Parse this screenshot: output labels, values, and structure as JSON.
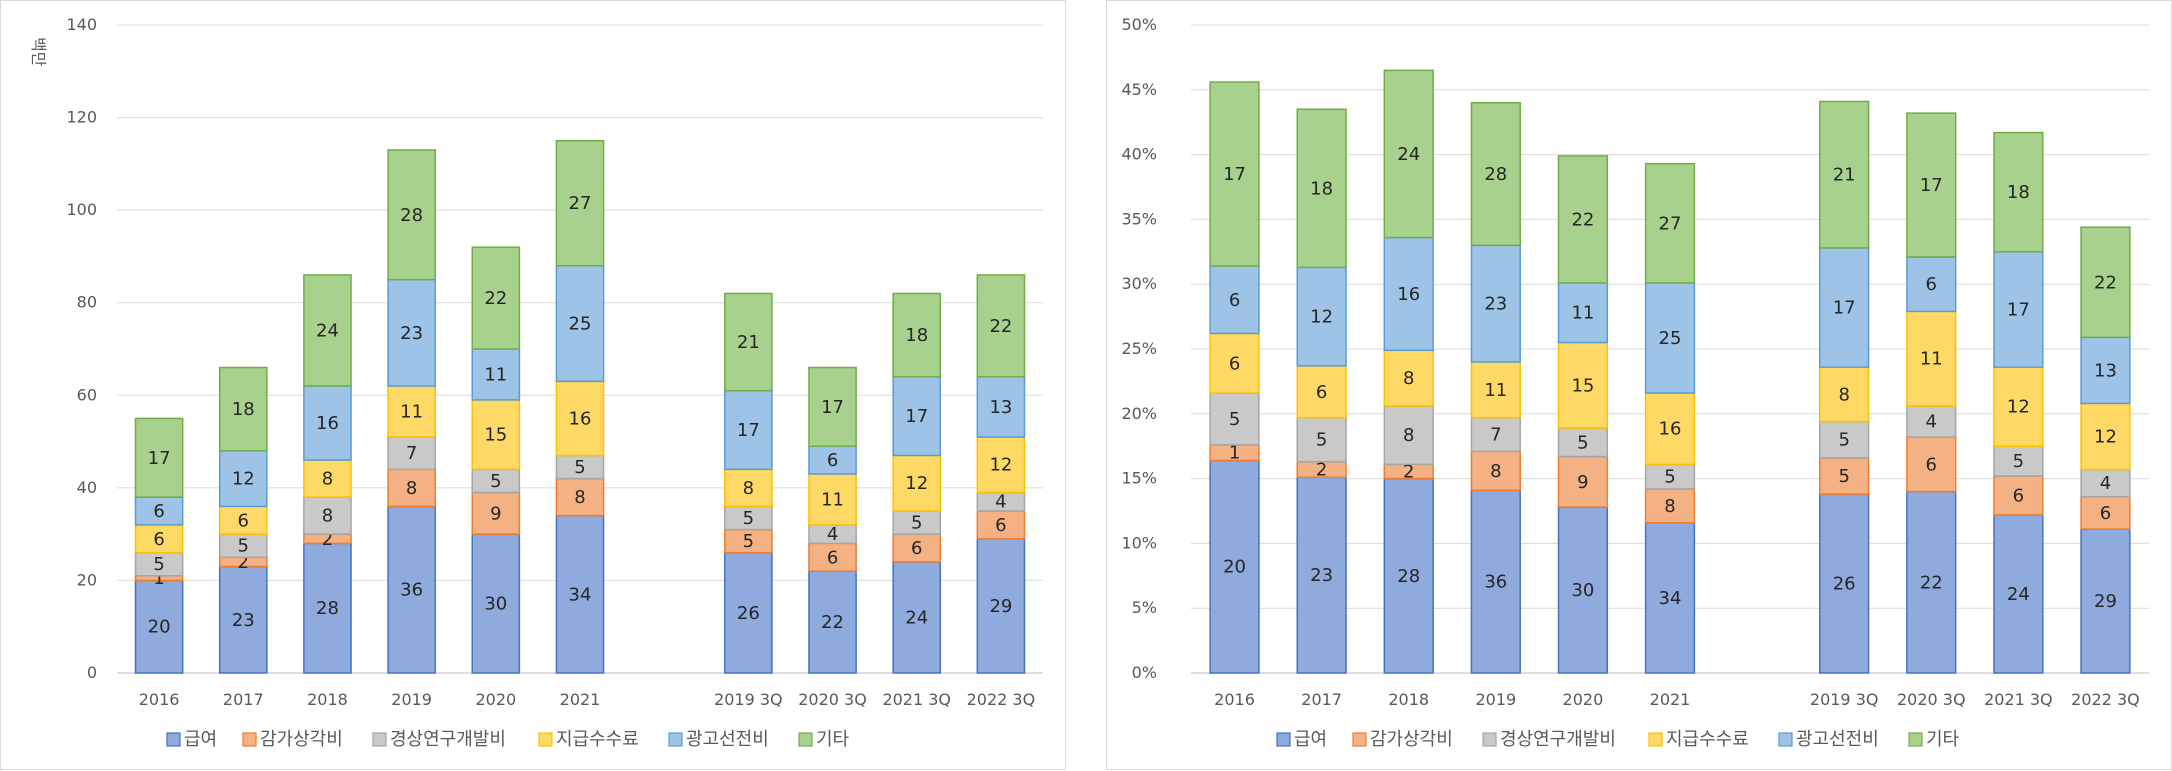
{
  "colors": {
    "급여": {
      "fill": "#8faadc",
      "stroke": "#4472c4"
    },
    "감가상각비": {
      "fill": "#f4b183",
      "stroke": "#ed7d31"
    },
    "경상연구개발비": {
      "fill": "#c9c9c9",
      "stroke": "#a5a5a5"
    },
    "지급수수료": {
      "fill": "#ffd966",
      "stroke": "#ffc000"
    },
    "광고선전비": {
      "fill": "#9dc3e6",
      "stroke": "#5b9bd5"
    },
    "기타": {
      "fill": "#a9d18e",
      "stroke": "#70ad47"
    }
  },
  "chart_data": [
    {
      "type": "bar",
      "stacked": true,
      "ylabel": "백만",
      "ylim": [
        0,
        140
      ],
      "yticks": [
        0,
        20,
        40,
        60,
        80,
        100,
        120,
        140
      ],
      "ytick_labels": [
        "0",
        "20",
        "40",
        "60",
        "80",
        "100",
        "120",
        "140"
      ],
      "grid": true,
      "legend": "bottom",
      "categories": [
        "2016",
        "2017",
        "2018",
        "2019",
        "2020",
        "2021",
        "",
        "2019 3Q",
        "2020 3Q",
        "2021 3Q",
        "2022 3Q"
      ],
      "series": [
        {
          "name": "급여",
          "values": [
            20,
            23,
            28,
            36,
            30,
            34,
            null,
            26,
            22,
            24,
            29
          ],
          "labels": [
            "20",
            "23",
            "28",
            "36",
            "30",
            "34",
            "",
            "26",
            "22",
            "24",
            "29"
          ]
        },
        {
          "name": "감가상각비",
          "values": [
            1,
            2,
            2,
            8,
            9,
            8,
            null,
            5,
            6,
            6,
            6
          ],
          "labels": [
            "1",
            "2",
            "2",
            "8",
            "9",
            "8",
            "",
            "5",
            "6",
            "6",
            "6"
          ]
        },
        {
          "name": "경상연구개발비",
          "values": [
            5,
            5,
            8,
            7,
            5,
            5,
            null,
            5,
            4,
            5,
            4
          ],
          "labels": [
            "5",
            "5",
            "8",
            "7",
            "5",
            "5",
            "",
            "5",
            "4",
            "5",
            "4"
          ]
        },
        {
          "name": "지급수수료",
          "values": [
            6,
            6,
            8,
            11,
            15,
            16,
            null,
            8,
            11,
            12,
            12
          ],
          "labels": [
            "6",
            "6",
            "8",
            "11",
            "15",
            "16",
            "",
            "8",
            "11",
            "12",
            "12"
          ]
        },
        {
          "name": "광고선전비",
          "values": [
            6,
            12,
            16,
            23,
            11,
            25,
            null,
            17,
            6,
            17,
            13
          ],
          "labels": [
            "6",
            "12",
            "16",
            "23",
            "11",
            "25",
            "",
            "17",
            "6",
            "17",
            "13"
          ]
        },
        {
          "name": "기타",
          "values": [
            17,
            18,
            24,
            28,
            22,
            27,
            null,
            21,
            17,
            18,
            22
          ],
          "labels": [
            "17",
            "18",
            "24",
            "28",
            "22",
            "27",
            "",
            "21",
            "17",
            "18",
            "22"
          ]
        }
      ]
    },
    {
      "type": "bar",
      "stacked": true,
      "ylim": [
        0,
        50
      ],
      "yticks": [
        0,
        5,
        10,
        15,
        20,
        25,
        30,
        35,
        40,
        45,
        50
      ],
      "ytick_labels": [
        "0%",
        "5%",
        "10%",
        "15%",
        "20%",
        "25%",
        "30%",
        "35%",
        "40%",
        "45%",
        "50%"
      ],
      "grid": true,
      "legend": "bottom",
      "categories": [
        "2016",
        "2017",
        "2018",
        "2019",
        "2020",
        "2021",
        "",
        "2019 3Q",
        "2020 3Q",
        "2021 3Q",
        "2022 3Q"
      ],
      "series": [
        {
          "name": "급여",
          "values": [
            16.4,
            15.1,
            15.0,
            14.1,
            12.8,
            11.6,
            null,
            13.8,
            14.0,
            12.2,
            11.1
          ],
          "labels": [
            "20",
            "23",
            "28",
            "36",
            "30",
            "34",
            "",
            "26",
            "22",
            "24",
            "29"
          ]
        },
        {
          "name": "감가상각비",
          "values": [
            1.2,
            1.2,
            1.1,
            3.0,
            3.9,
            2.6,
            null,
            2.8,
            4.2,
            3.0,
            2.5
          ],
          "labels": [
            "1",
            "2",
            "2",
            "8",
            "9",
            "8",
            "",
            "5",
            "6",
            "6",
            "6"
          ]
        },
        {
          "name": "경상연구개발비",
          "values": [
            4.0,
            3.4,
            4.5,
            2.6,
            2.2,
            1.9,
            null,
            2.8,
            2.4,
            2.3,
            2.1
          ],
          "labels": [
            "5",
            "5",
            "8",
            "7",
            "5",
            "5",
            "",
            "5",
            "4",
            "5",
            "4"
          ]
        },
        {
          "name": "지급수수료",
          "values": [
            4.6,
            4.0,
            4.3,
            4.3,
            6.6,
            5.5,
            null,
            4.2,
            7.3,
            6.1,
            5.1
          ],
          "labels": [
            "6",
            "6",
            "8",
            "11",
            "15",
            "16",
            "",
            "8",
            "11",
            "12",
            "12"
          ]
        },
        {
          "name": "광고선전비",
          "values": [
            5.2,
            7.6,
            8.7,
            9.0,
            4.6,
            8.5,
            null,
            9.2,
            4.2,
            8.9,
            5.1
          ],
          "labels": [
            "6",
            "12",
            "16",
            "23",
            "11",
            "25",
            "",
            "17",
            "6",
            "17",
            "13"
          ]
        },
        {
          "name": "기타",
          "values": [
            14.2,
            12.2,
            12.9,
            11.0,
            9.8,
            9.2,
            null,
            11.3,
            11.1,
            9.2,
            8.5
          ],
          "labels": [
            "17",
            "18",
            "24",
            "28",
            "22",
            "27",
            "",
            "21",
            "17",
            "18",
            "22"
          ]
        }
      ]
    }
  ]
}
